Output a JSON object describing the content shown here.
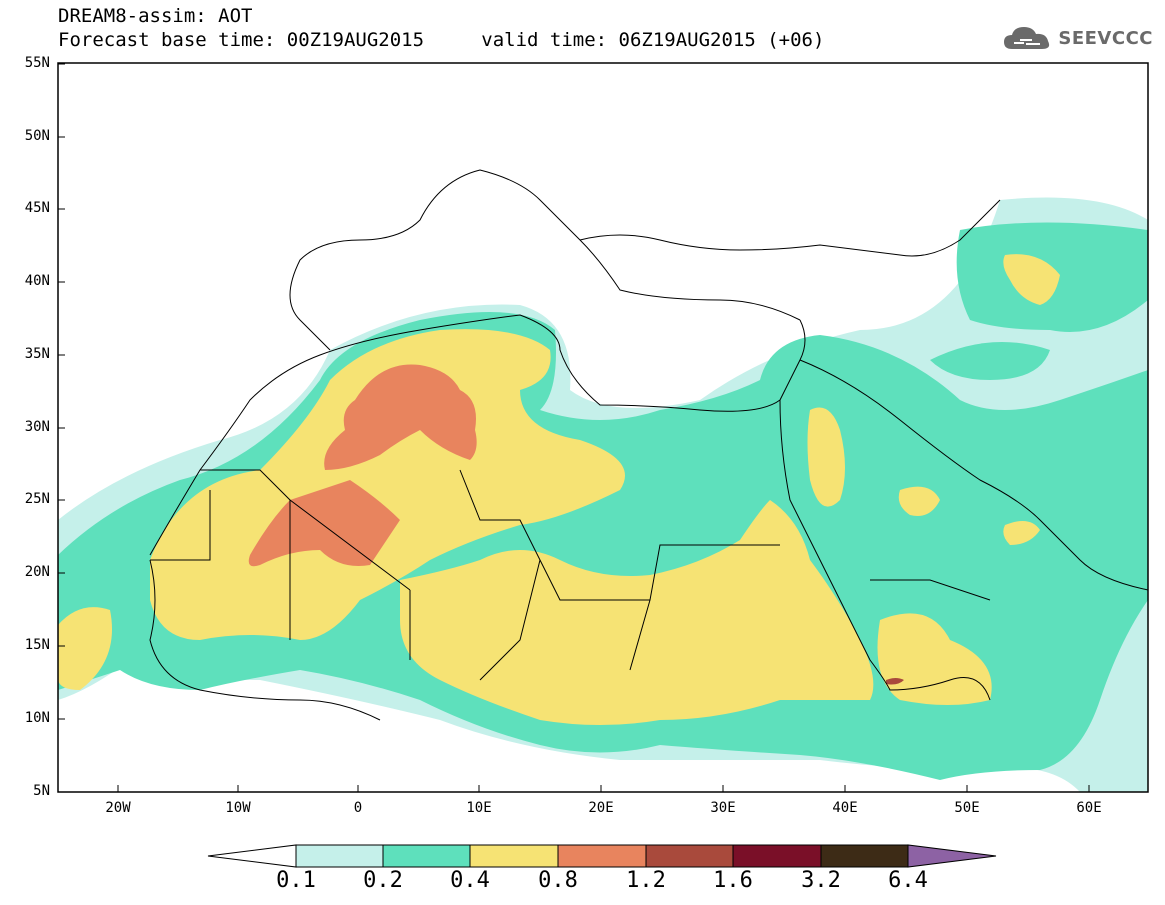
{
  "title": {
    "line1": "DREAM8-assim: AOT",
    "base_time": "Forecast base time: 00Z19AUG2015",
    "valid_time": "valid time: 06Z19AUG2015 (+06)"
  },
  "logo": {
    "text": "SEEVCCC",
    "icon": "cloud-icon"
  },
  "map": {
    "projection": "lat-lon",
    "lon_range": [
      -25,
      65
    ],
    "lat_range": [
      5,
      55
    ],
    "lat_ticks": [
      "55N",
      "50N",
      "45N",
      "40N",
      "35N",
      "30N",
      "25N",
      "20N",
      "15N",
      "10N",
      "5N"
    ],
    "lon_ticks": [
      "20W",
      "10W",
      "0",
      "10E",
      "20E",
      "30E",
      "40E",
      "50E",
      "60E"
    ]
  },
  "colorbar": {
    "labels": [
      "0.1",
      "0.2",
      "0.4",
      "0.8",
      "1.2",
      "1.6",
      "3.2",
      "6.4"
    ],
    "colors": [
      "#ffffff",
      "#c5f0ea",
      "#5ee0bc",
      "#f6e374",
      "#e8845e",
      "#a94a3c",
      "#7a0f28",
      "#3d2b16",
      "#8d62a4"
    ]
  }
}
